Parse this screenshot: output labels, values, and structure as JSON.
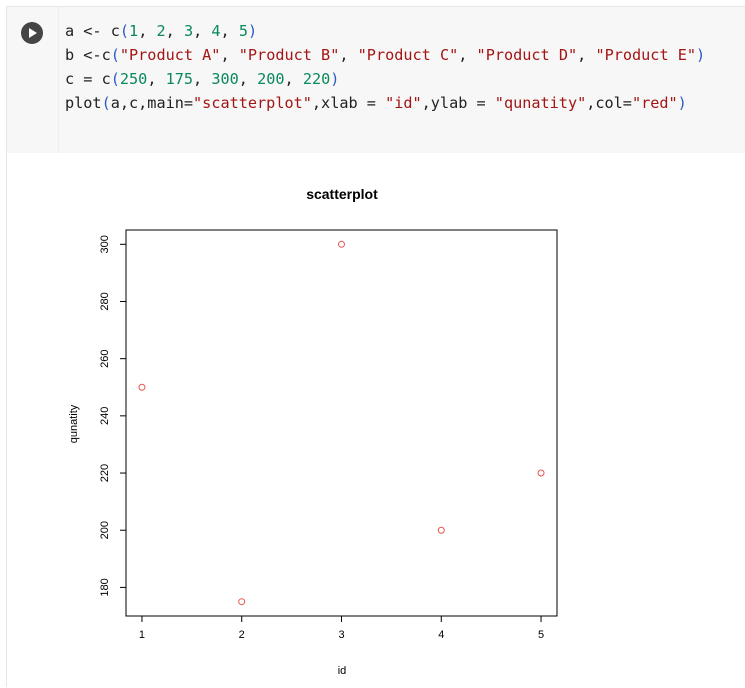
{
  "code_cell": {
    "line1": {
      "p1": "a <- c",
      "o": "(",
      "n1": "1",
      "s1": ", ",
      "n2": "2",
      "s2": ", ",
      "n3": "3",
      "s3": ", ",
      "n4": "4",
      "s4": ", ",
      "n5": "5",
      "c": ")"
    },
    "line2": {
      "p1": "b <-c",
      "o": "(",
      "t1": "\"Product A\"",
      "s1": ", ",
      "t2": "\"Product B\"",
      "s2": ", ",
      "t3": "\"Product C\"",
      "s3": ", ",
      "t4": "\"Product D\"",
      "s4": ", ",
      "t5": "\"Product E\"",
      "c": ")"
    },
    "line3": {
      "p1": "c = c",
      "o": "(",
      "n1": "250",
      "s1": ", ",
      "n2": "175",
      "s2": ", ",
      "n3": "300",
      "s3": ", ",
      "n4": "200",
      "s4": ", ",
      "n5": "220",
      "c": ")"
    },
    "line4": {
      "p1": "plot",
      "o": "(",
      "args": "a,c,main=",
      "t1": "\"scatterplot\"",
      "a2": ",xlab = ",
      "t2": "\"id\"",
      "a3": ",ylab = ",
      "t3": "\"qunatity\"",
      "a4": ",col=",
      "t4": "\"red\"",
      "c": ")"
    }
  },
  "colors": {
    "point": "#e8554e",
    "number": "#09885a",
    "string": "#a31515",
    "paren": "#2d59c5"
  },
  "icons": {
    "run": "play-circle-icon"
  },
  "chart_data": {
    "type": "scatter",
    "title": "scatterplot",
    "xlabel": "id",
    "ylabel": "qunatity",
    "x": [
      1,
      2,
      3,
      4,
      5
    ],
    "y": [
      250,
      175,
      300,
      200,
      220
    ],
    "xlim": [
      0.84,
      5.16
    ],
    "ylim": [
      170,
      305
    ],
    "xticks": [
      1,
      2,
      3,
      4,
      5
    ],
    "yticks": [
      180,
      200,
      220,
      240,
      260,
      280,
      300
    ],
    "marker": "open-circle",
    "color": "red",
    "grid": false
  }
}
